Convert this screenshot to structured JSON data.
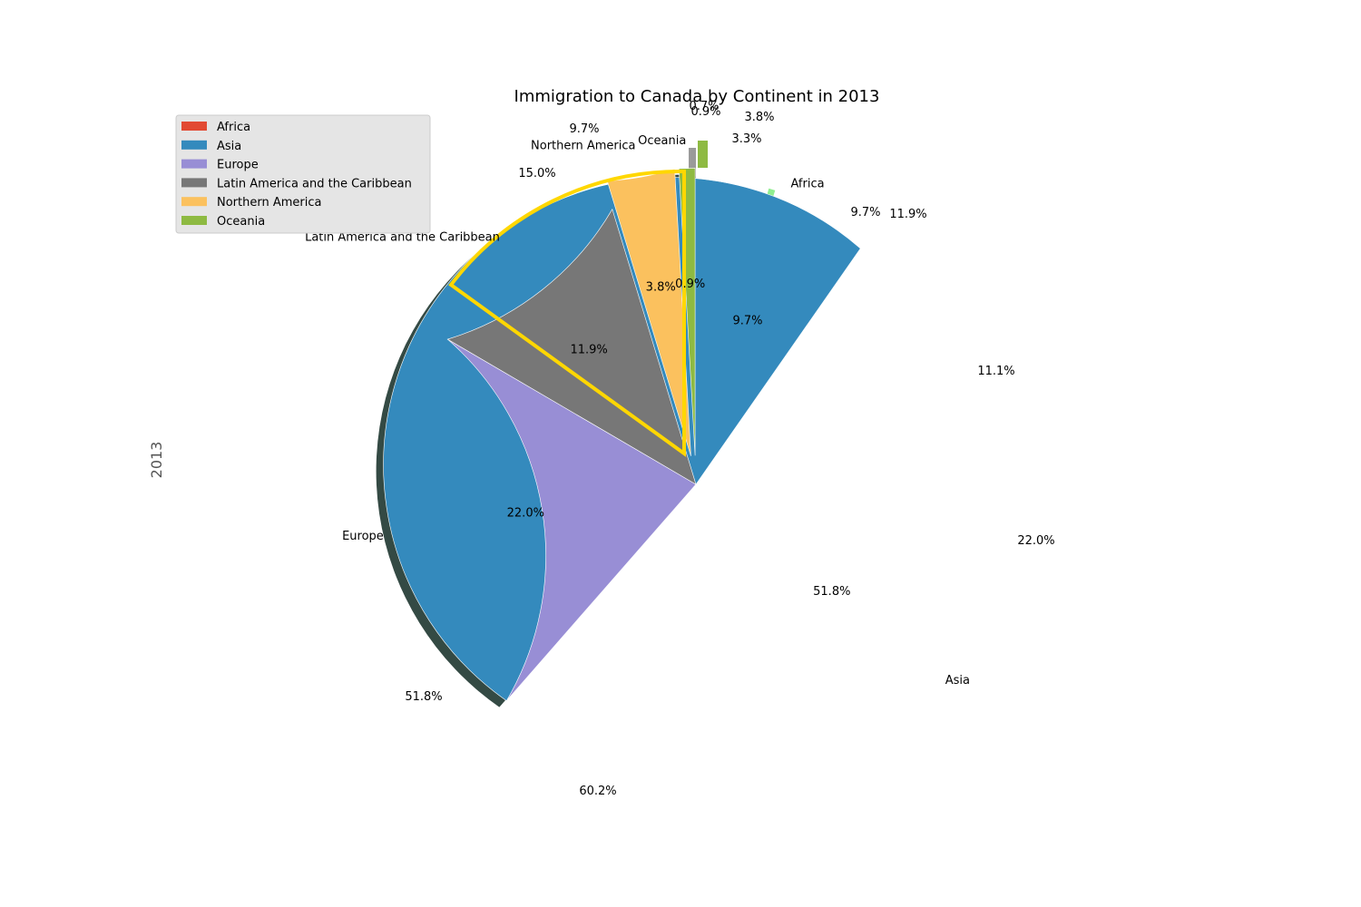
{
  "chart_data": {
    "type": "pie",
    "title": "Immigration to Canada by Continent in 2013",
    "ylabel": "2013",
    "categories": [
      "Africa",
      "Asia",
      "Europe",
      "Latin America and the Caribbean",
      "Northern America",
      "Oceania"
    ],
    "colors": [
      "#E24A33",
      "#348ABD",
      "#988ED5",
      "#777777",
      "#FBC15E",
      "#8EBA42"
    ],
    "values": [
      9.7,
      51.8,
      22.0,
      11.9,
      3.8,
      0.9
    ],
    "pct_labels": [
      "9.7%",
      "51.8%",
      "22.0%",
      "11.9%",
      "3.8%",
      "0.9%"
    ],
    "legend_position": "upper left",
    "shadow": true,
    "start_angle": 90,
    "overlay_percent_labels": [
      "9.7%",
      "0.7%",
      "0.9%",
      "3.8%",
      "3.3%",
      "15.0%",
      "9.7%",
      "11.9%",
      "11.1%",
      "22.0%",
      "51.8%",
      "60.2%"
    ],
    "artifact_colors": {
      "ring_accent": "#9ACD32",
      "outline": "#FFD700",
      "shadow": "#344A44",
      "light_green": "#90EE90",
      "taupe": "#9E8683"
    }
  }
}
